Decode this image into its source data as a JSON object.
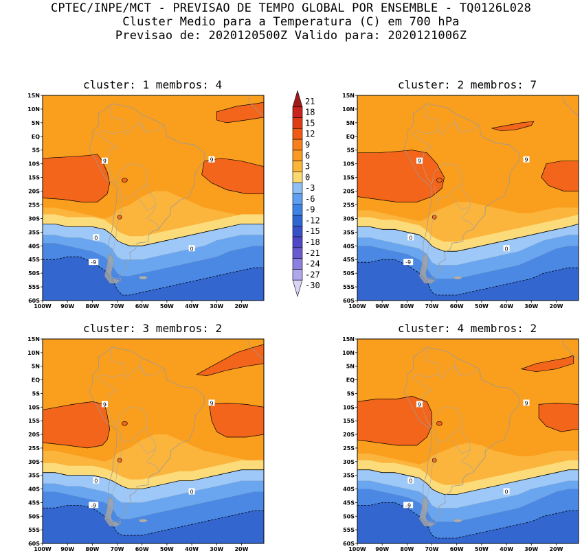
{
  "header": {
    "line1": "CPTEC/INPE/MCT - PREVISAO DE TEMPO GLOBAL POR ENSEMBLE - TQ0126L028",
    "line2": "Cluster Medio para a Temperatura (C) em 700 hPa",
    "line3": "Previsao de: 2020120500Z   Valido para: 2020121006Z"
  },
  "panels": [
    {
      "title": "cluster: 1  membros: 4"
    },
    {
      "title": "cluster: 2  membros: 7"
    },
    {
      "title": "cluster: 3  membros: 2"
    },
    {
      "title": "cluster: 4  membros: 2"
    }
  ],
  "lat_ticks": [
    "15N",
    "10N",
    "5N",
    "EQ",
    "5S",
    "10S",
    "15S",
    "20S",
    "25S",
    "30S",
    "35S",
    "40S",
    "45S",
    "50S",
    "55S",
    "60S"
  ],
  "lon_ticks": [
    "100W",
    "90W",
    "80W",
    "70W",
    "60W",
    "50W",
    "40W",
    "30W",
    "20W"
  ],
  "colorbar": {
    "labels": [
      "21",
      "18",
      "15",
      "12",
      "9",
      "6",
      "3",
      "0",
      "-3",
      "-6",
      "-9",
      "-12",
      "-15",
      "-18",
      "-21",
      "-24",
      "-27",
      "-30"
    ],
    "colors": [
      "#a01a1a",
      "#c8231e",
      "#e03c14",
      "#f05a14",
      "#f77f1c",
      "#fa9a22",
      "#fbb538",
      "#fcd870",
      "#8ec0f5",
      "#5e9ff0",
      "#3f82e6",
      "#2e66d2",
      "#3a50c8",
      "#5046c8",
      "#6a5ad2",
      "#8c80e0",
      "#b0a8ec",
      "#d8d4f6"
    ]
  },
  "contour_labels": {
    "zero": "0",
    "nine": "9",
    "minus_nine": "-9"
  },
  "palette": {
    "warm9": "#f3651a",
    "warm6": "#fa9e1e",
    "warm3": "#fbb43c",
    "warm0": "#fcdc7a",
    "cool0": "#9dc8f7",
    "cool3": "#6aa6f0",
    "cool6": "#4a88e4",
    "cool9": "#3366cf"
  }
}
